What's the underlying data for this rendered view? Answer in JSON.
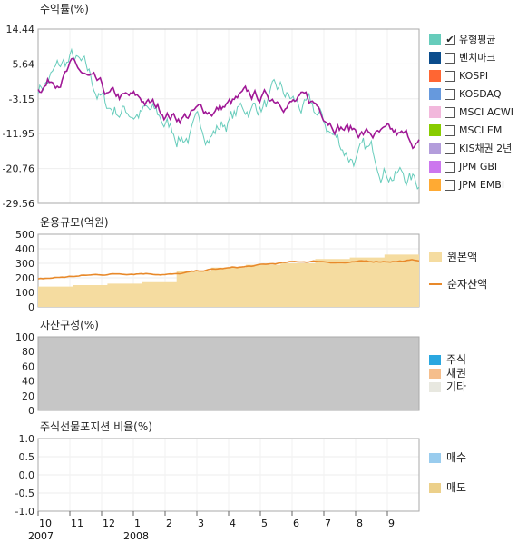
{
  "panels": {
    "returns": {
      "title": "수익률(%)",
      "yticks": [
        "14.44",
        "5.64",
        "-3.15",
        "-11.95",
        "-20.76",
        "-29.56"
      ],
      "legend": [
        {
          "label": "유형평균",
          "color": "#66ccbb",
          "checked": true
        },
        {
          "label": "벤치마크",
          "color": "#0a4c8c",
          "checked": false
        },
        {
          "label": "KOSPI",
          "color": "#ff6633",
          "checked": false
        },
        {
          "label": "KOSDAQ",
          "color": "#6699dd",
          "checked": false
        },
        {
          "label": "MSCI ACWI",
          "color": "#f2b8dc",
          "checked": false
        },
        {
          "label": "MSCI EM",
          "color": "#88cc00",
          "checked": false
        },
        {
          "label": "KIS채권 2년",
          "color": "#b39ddb",
          "checked": false
        },
        {
          "label": "JPM GBI",
          "color": "#cc77ee",
          "checked": false
        },
        {
          "label": "JPM EMBI",
          "color": "#ffaa33",
          "checked": false
        }
      ]
    },
    "aum": {
      "title": "운용규모(억원)",
      "yticks": [
        "500",
        "400",
        "300",
        "200",
        "100",
        "0"
      ],
      "legend": [
        {
          "label": "원본액",
          "color": "#f5dca0"
        },
        {
          "label": "순자산액",
          "color": "#e8892a"
        }
      ]
    },
    "assets": {
      "title": "자산구성(%)",
      "yticks": [
        "100",
        "80",
        "60",
        "40",
        "20",
        "0"
      ],
      "legend": [
        {
          "label": "주식",
          "color": "#2aa7e0"
        },
        {
          "label": "채권",
          "color": "#f5be8c"
        },
        {
          "label": "기타",
          "color": "#e8e8e0"
        }
      ]
    },
    "futures": {
      "title": "주식선물포지션 비율(%)",
      "yticks": [
        "1.0",
        "0.5",
        "0.0",
        "-0.5",
        "-1.0"
      ],
      "legend": [
        {
          "label": "매수",
          "color": "#99ccee"
        },
        {
          "label": "매도",
          "color": "#ecd08a"
        }
      ]
    }
  },
  "xaxis": {
    "months": [
      "10",
      "11",
      "12",
      "1",
      "2",
      "3",
      "4",
      "5",
      "6",
      "7",
      "8",
      "9"
    ],
    "years": [
      {
        "label": "2007",
        "at": "10"
      },
      {
        "label": "2008",
        "at": "1"
      }
    ]
  },
  "chart_data": [
    {
      "type": "line",
      "title": "수익률(%)",
      "ylim": [
        -29.56,
        14.44
      ],
      "x": [
        "2007-10",
        "2007-11",
        "2007-12",
        "2008-01",
        "2008-02",
        "2008-03",
        "2008-04",
        "2008-05",
        "2008-06",
        "2008-07",
        "2008-08",
        "2008-09"
      ],
      "series": [
        {
          "name": "유형평균",
          "color": "#66ccbb",
          "values": [
            0.0,
            6.5,
            -5.5,
            -6.0,
            -12.0,
            -11.0,
            -5.5,
            -3.0,
            -8.0,
            -17.0,
            -19.0,
            -24.5
          ]
        },
        {
          "color": "#a01896",
          "values": [
            0.0,
            5.0,
            -3.5,
            -4.0,
            -7.5,
            -6.0,
            -3.5,
            -2.5,
            -5.0,
            -10.5,
            -13.0,
            -14.5
          ]
        }
      ]
    },
    {
      "type": "area",
      "title": "운용규모(억원)",
      "ylim": [
        0,
        500
      ],
      "x": [
        "2007-10",
        "2007-11",
        "2007-12",
        "2008-01",
        "2008-02",
        "2008-03",
        "2008-04",
        "2008-05",
        "2008-06",
        "2008-07",
        "2008-08",
        "2008-09"
      ],
      "series": [
        {
          "name": "원본액",
          "color": "#f5dca0",
          "values": [
            140,
            150,
            160,
            170,
            250,
            270,
            290,
            300,
            330,
            340,
            360,
            380
          ]
        },
        {
          "name": "순자산액",
          "color": "#e8892a",
          "values": [
            190,
            210,
            225,
            235,
            225,
            255,
            275,
            300,
            315,
            305,
            315,
            320
          ]
        }
      ]
    },
    {
      "type": "area",
      "title": "자산구성(%)",
      "ylim": [
        0,
        100
      ],
      "x": [
        "2007-10",
        "2008-09"
      ],
      "series": [
        {
          "name": "주식",
          "color": "#2aa7e0",
          "values": [
            0,
            0
          ]
        },
        {
          "name": "채권",
          "color": "#f5be8c",
          "values": [
            0,
            0
          ]
        },
        {
          "name": "기타",
          "color": "#e8e8e0",
          "values": [
            0,
            0
          ]
        },
        {
          "color": "#c6c6c6",
          "values": [
            100,
            100
          ]
        }
      ]
    },
    {
      "type": "bar",
      "title": "주식선물포지션 비율(%)",
      "ylim": [
        -1.0,
        1.0
      ],
      "series": [
        {
          "name": "매수",
          "color": "#99ccee",
          "values": []
        },
        {
          "name": "매도",
          "color": "#ecd08a",
          "values": []
        }
      ]
    }
  ]
}
